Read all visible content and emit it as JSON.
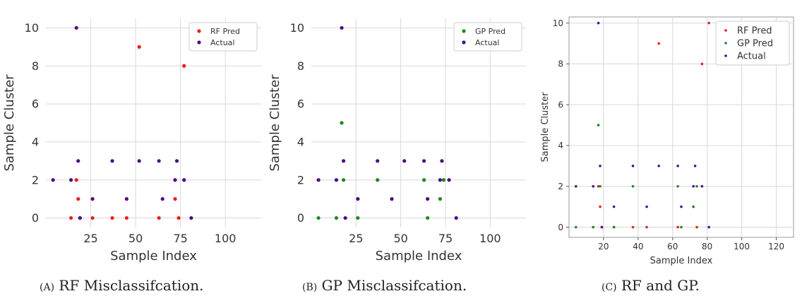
{
  "captions": [
    {
      "tag": "(A)",
      "text": "RF Misclassifcation."
    },
    {
      "tag": "(B)",
      "text": "GP Misclassifcation."
    },
    {
      "tag": "(C)",
      "text": "RF and GP."
    }
  ],
  "colors": {
    "rf": "#ee1c1c",
    "gp": "#1c8a1c",
    "actual": "#4b0a8c",
    "grid": "#d8d8d8",
    "axis": "#333333"
  },
  "chart_data": [
    {
      "type": "scatter",
      "xlabel": "Sample Index",
      "ylabel": "Sample Cluster",
      "xlim": [
        0,
        120
      ],
      "ylim": [
        -0.5,
        10.5
      ],
      "xticks": [
        25,
        50,
        75,
        100
      ],
      "yticks": [
        0,
        2,
        4,
        6,
        8,
        10
      ],
      "grid": true,
      "legend_position": "top-right",
      "series": [
        {
          "name": "RF Pred",
          "color": "#ee1c1c",
          "points": [
            [
              14,
              0
            ],
            [
              17,
              2
            ],
            [
              18,
              1
            ],
            [
              19,
              0
            ],
            [
              26,
              0
            ],
            [
              37,
              0
            ],
            [
              45,
              0
            ],
            [
              52,
              9
            ],
            [
              63,
              0
            ],
            [
              72,
              1
            ],
            [
              74,
              0
            ],
            [
              77,
              8
            ],
            [
              81,
              10
            ]
          ]
        },
        {
          "name": "Actual",
          "color": "#4b0a8c",
          "points": [
            [
              4,
              2
            ],
            [
              14,
              2
            ],
            [
              17,
              10
            ],
            [
              18,
              3
            ],
            [
              19,
              0
            ],
            [
              26,
              1
            ],
            [
              37,
              3
            ],
            [
              45,
              1
            ],
            [
              52,
              3
            ],
            [
              63,
              3
            ],
            [
              65,
              1
            ],
            [
              72,
              2
            ],
            [
              73,
              3
            ],
            [
              77,
              2
            ],
            [
              81,
              0
            ]
          ]
        }
      ]
    },
    {
      "type": "scatter",
      "xlabel": "Sample Index",
      "ylabel": "Sample Cluster",
      "xlim": [
        0,
        120
      ],
      "ylim": [
        -0.5,
        10.5
      ],
      "xticks": [
        25,
        50,
        75,
        100
      ],
      "yticks": [
        0,
        2,
        4,
        6,
        8,
        10
      ],
      "grid": true,
      "legend_position": "top-right",
      "series": [
        {
          "name": "GP Pred",
          "color": "#1c8a1c",
          "points": [
            [
              4,
              0
            ],
            [
              14,
              0
            ],
            [
              17,
              5
            ],
            [
              18,
              2
            ],
            [
              26,
              0
            ],
            [
              37,
              2
            ],
            [
              63,
              2
            ],
            [
              65,
              0
            ],
            [
              72,
              1
            ],
            [
              74,
              2
            ]
          ]
        },
        {
          "name": "Actual",
          "color": "#4b0a8c",
          "points": [
            [
              4,
              2
            ],
            [
              14,
              2
            ],
            [
              17,
              10
            ],
            [
              18,
              3
            ],
            [
              19,
              0
            ],
            [
              26,
              1
            ],
            [
              37,
              3
            ],
            [
              45,
              1
            ],
            [
              52,
              3
            ],
            [
              63,
              3
            ],
            [
              65,
              1
            ],
            [
              72,
              2
            ],
            [
              73,
              3
            ],
            [
              77,
              2
            ],
            [
              81,
              0
            ]
          ]
        }
      ]
    },
    {
      "type": "scatter",
      "xlabel": "Sample Index",
      "ylabel": "Sample Cluster",
      "xlim": [
        0,
        130
      ],
      "ylim": [
        -0.5,
        10.3
      ],
      "xticks": [
        20,
        40,
        60,
        80,
        100,
        120
      ],
      "yticks": [
        0,
        2,
        4,
        6,
        8,
        10
      ],
      "grid": true,
      "legend_position": "top-right",
      "series": [
        {
          "name": "RF Pred",
          "color": "#ee1c1c",
          "points": [
            [
              14,
              0
            ],
            [
              17,
              2
            ],
            [
              18,
              1
            ],
            [
              19,
              0
            ],
            [
              26,
              0
            ],
            [
              37,
              0
            ],
            [
              45,
              0
            ],
            [
              52,
              9
            ],
            [
              63,
              0
            ],
            [
              72,
              1
            ],
            [
              74,
              0
            ],
            [
              77,
              8
            ],
            [
              81,
              10
            ]
          ]
        },
        {
          "name": "GP Pred",
          "color": "#1c8a1c",
          "points": [
            [
              4,
              0
            ],
            [
              14,
              0
            ],
            [
              17,
              5
            ],
            [
              18,
              2
            ],
            [
              26,
              0
            ],
            [
              37,
              2
            ],
            [
              63,
              2
            ],
            [
              65,
              0
            ],
            [
              72,
              1
            ],
            [
              74,
              2
            ]
          ]
        },
        {
          "name": "Actual",
          "color": "#4b0a8c",
          "points": [
            [
              4,
              2
            ],
            [
              14,
              2
            ],
            [
              17,
              10
            ],
            [
              18,
              3
            ],
            [
              19,
              0
            ],
            [
              26,
              1
            ],
            [
              37,
              3
            ],
            [
              45,
              1
            ],
            [
              52,
              3
            ],
            [
              63,
              3
            ],
            [
              65,
              1
            ],
            [
              72,
              2
            ],
            [
              73,
              3
            ],
            [
              77,
              2
            ],
            [
              81,
              0
            ]
          ]
        }
      ]
    }
  ]
}
